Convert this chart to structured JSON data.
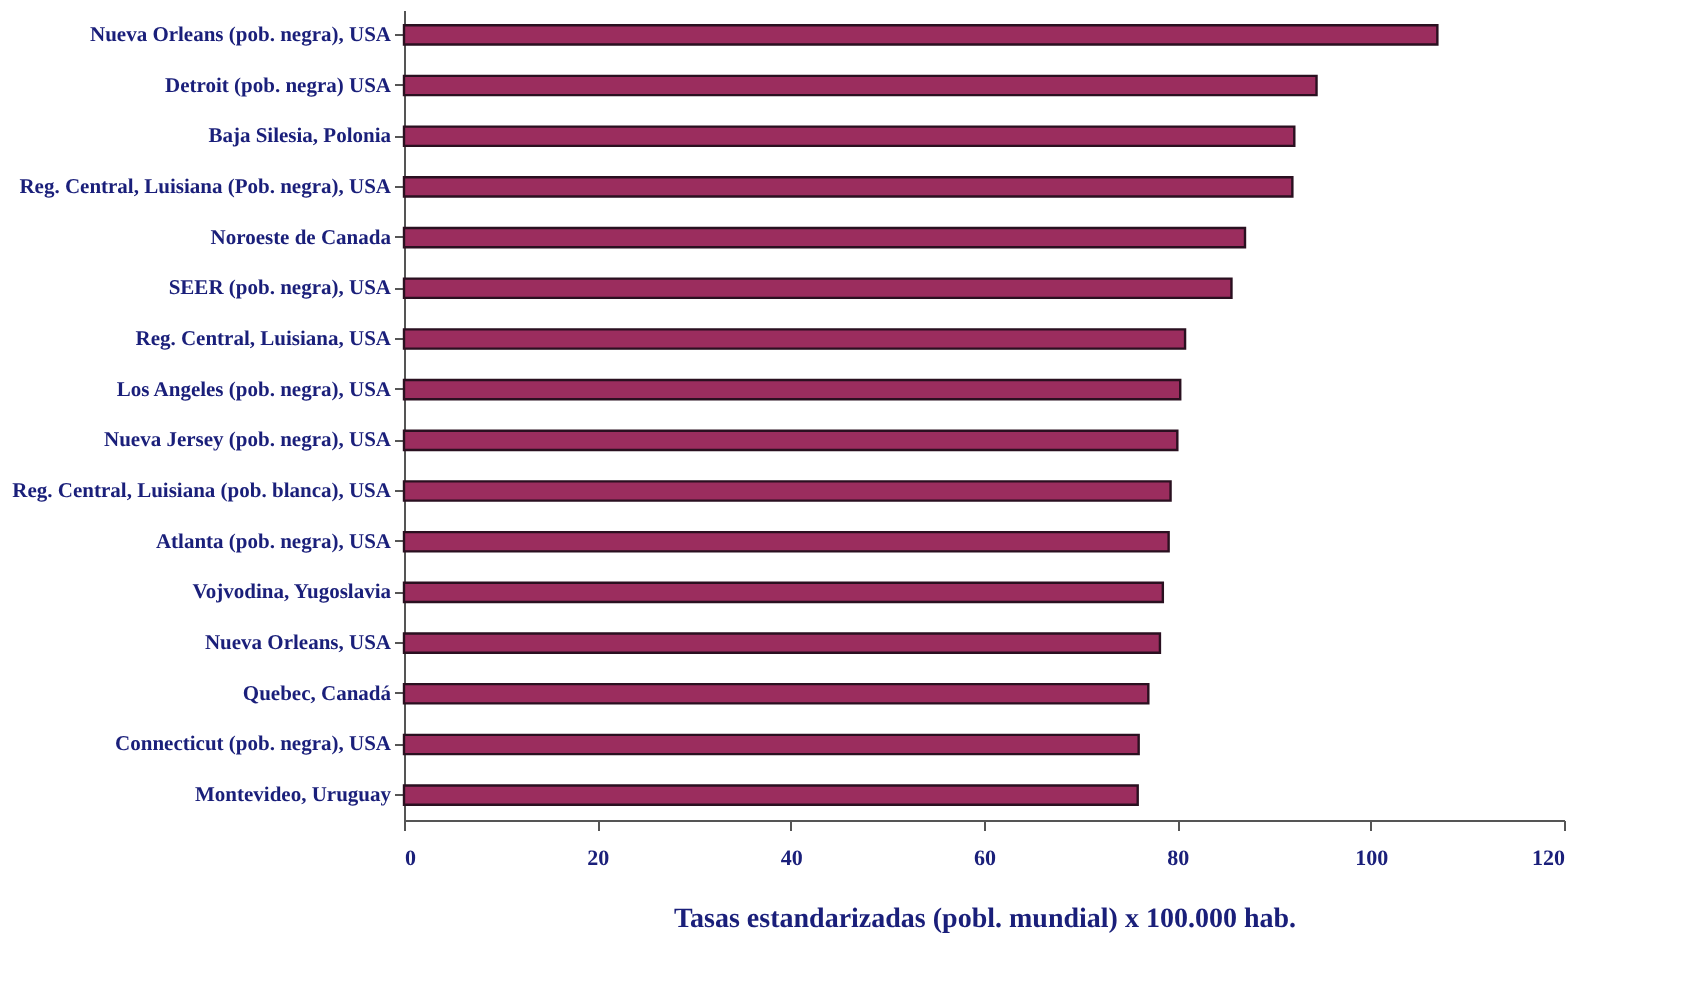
{
  "chart_data": {
    "type": "bar",
    "orientation": "horizontal",
    "categories": [
      "Nueva Orleans (pob. negra), USA",
      "Detroit (pob. negra) USA",
      "Baja Silesia, Polonia",
      "Reg. Central, Luisiana (Pob. negra), USA",
      "Noroeste de Canada",
      "SEER (pob. negra), USA",
      "Reg. Central, Luisiana, USA",
      "Los Angeles (pob. negra), USA",
      "Nueva Jersey (pob. negra), USA",
      "Reg. Central, Luisiana (pob. blanca), USA",
      "Atlanta (pob. negra), USA",
      "Vojvodina, Yugoslavia",
      "Nueva Orleans, USA",
      "Quebec, Canadá",
      "Connecticut (pob. negra), USA",
      "Montevideo, Uruguay"
    ],
    "values": [
      106.9,
      94.4,
      92.1,
      91.9,
      87.0,
      85.6,
      80.8,
      80.3,
      80.0,
      79.3,
      79.1,
      78.5,
      78.2,
      77.0,
      76.0,
      75.9
    ],
    "color": "#9b2d5e",
    "xlabel": "Tasas estandarizadas (pobl. mundial) x 100.000 hab.",
    "xlim": [
      0,
      120
    ],
    "xticks": [
      0,
      20,
      40,
      60,
      80,
      100,
      120
    ],
    "grid": false
  }
}
